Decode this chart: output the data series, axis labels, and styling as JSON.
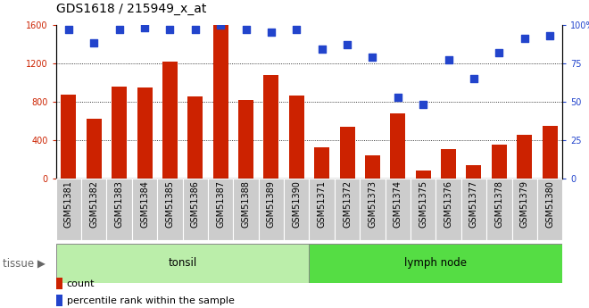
{
  "title": "GDS1618 / 215949_x_at",
  "categories": [
    "GSM51381",
    "GSM51382",
    "GSM51383",
    "GSM51384",
    "GSM51385",
    "GSM51386",
    "GSM51387",
    "GSM51388",
    "GSM51389",
    "GSM51390",
    "GSM51371",
    "GSM51372",
    "GSM51373",
    "GSM51374",
    "GSM51375",
    "GSM51376",
    "GSM51377",
    "GSM51378",
    "GSM51379",
    "GSM51380"
  ],
  "counts": [
    870,
    620,
    960,
    950,
    1220,
    850,
    1600,
    820,
    1080,
    860,
    330,
    540,
    240,
    680,
    80,
    310,
    140,
    350,
    460,
    550
  ],
  "percentiles": [
    97,
    88,
    97,
    98,
    97,
    97,
    100,
    97,
    95,
    97,
    84,
    87,
    79,
    53,
    48,
    77,
    65,
    82,
    91,
    93
  ],
  "tonsil_count": 10,
  "lymph_count": 10,
  "tonsil_label": "tonsil",
  "lymph_label": "lymph node",
  "tissue_label": "tissue",
  "ylim_left": [
    0,
    1600
  ],
  "ylim_right": [
    0,
    100
  ],
  "yticks_left": [
    0,
    400,
    800,
    1200,
    1600
  ],
  "yticks_right": [
    0,
    25,
    50,
    75,
    100
  ],
  "bar_color": "#cc2200",
  "dot_color": "#2244cc",
  "tonsil_bg": "#bbeeaa",
  "lymph_bg": "#55dd44",
  "xticklabel_bg": "#cccccc",
  "legend_count_label": "count",
  "legend_pct_label": "percentile rank within the sample",
  "title_fontsize": 10,
  "tick_fontsize": 7,
  "label_fontsize": 8,
  "tissue_fontsize": 8.5,
  "dot_size": 28,
  "bar_width": 0.6,
  "grid_dotted_vals": [
    400,
    800,
    1200
  ],
  "fig_bg": "#e8e8e8"
}
